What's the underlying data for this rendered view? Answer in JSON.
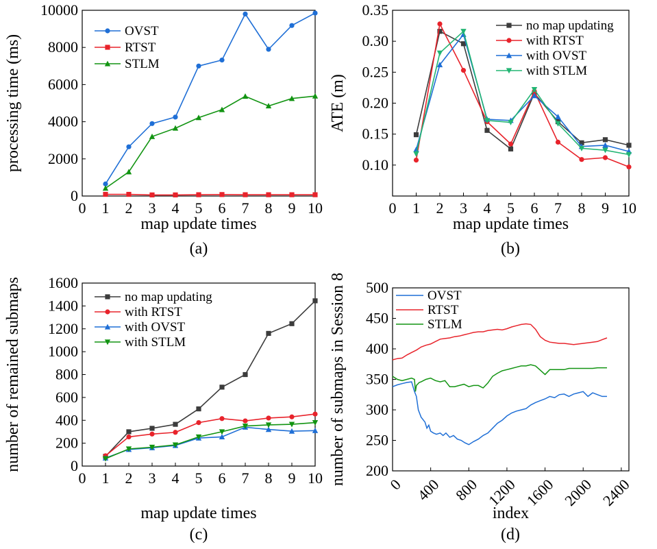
{
  "colors": {
    "blue": "#1f6fd6",
    "red": "#e8232b",
    "green": "#129412",
    "gray": "#3c3c3c"
  },
  "chart_data": [
    {
      "id": "a",
      "type": "line",
      "caption": "(a)",
      "xlabel": "map update times",
      "ylabel": "processing time (ms)",
      "xlim": [
        0,
        10
      ],
      "ylim": [
        0,
        10000
      ],
      "xticks": [
        0,
        1,
        2,
        3,
        4,
        5,
        6,
        7,
        8,
        9,
        10
      ],
      "yticks": [
        0,
        2000,
        4000,
        6000,
        8000,
        10000
      ],
      "legend": "top-left",
      "x": [
        1,
        2,
        3,
        4,
        5,
        6,
        7,
        8,
        9,
        10
      ],
      "series": [
        {
          "name": "OVST",
          "color": "#1f6fd6",
          "marker": "circle",
          "values": [
            650,
            2650,
            3900,
            4250,
            7000,
            7320,
            9800,
            7900,
            9180,
            9850
          ]
        },
        {
          "name": "RTST",
          "color": "#e8232b",
          "marker": "square",
          "values": [
            90,
            90,
            60,
            60,
            70,
            80,
            70,
            70,
            70,
            70
          ]
        },
        {
          "name": "STLM",
          "color": "#129412",
          "marker": "triangle-up",
          "values": [
            420,
            1300,
            3200,
            3650,
            4220,
            4650,
            5370,
            4850,
            5250,
            5380
          ]
        }
      ]
    },
    {
      "id": "b",
      "type": "line",
      "caption": "(b)",
      "xlabel": "map update times",
      "ylabel": "ATE (m)",
      "xlim": [
        0,
        10
      ],
      "ylim": [
        0.05,
        0.35
      ],
      "xticks": [
        0,
        1,
        2,
        3,
        4,
        5,
        6,
        7,
        8,
        9,
        10
      ],
      "yticks": [
        0.1,
        0.15,
        0.2,
        0.25,
        0.3,
        0.35
      ],
      "ytick_labels": [
        "0.10",
        "0.15",
        "0.20",
        "0.25",
        "0.30",
        "0.35"
      ],
      "legend": "top-right",
      "x": [
        1,
        2,
        3,
        4,
        5,
        6,
        7,
        8,
        9,
        10
      ],
      "series": [
        {
          "name": "no map updating",
          "color": "#3c3c3c",
          "marker": "square",
          "values": [
            0.149,
            0.316,
            0.296,
            0.156,
            0.126,
            0.216,
            0.17,
            0.136,
            0.141,
            0.132
          ]
        },
        {
          "name": "with RTST",
          "color": "#e8232b",
          "marker": "circle",
          "values": [
            0.108,
            0.328,
            0.253,
            0.17,
            0.134,
            0.219,
            0.137,
            0.109,
            0.112,
            0.097
          ]
        },
        {
          "name": "with OVST",
          "color": "#1f6fd6",
          "marker": "triangle-up",
          "values": [
            0.125,
            0.262,
            0.311,
            0.174,
            0.172,
            0.212,
            0.178,
            0.13,
            0.132,
            0.122
          ]
        },
        {
          "name": "with STLM",
          "color": "#22b573",
          "marker": "triangle-down",
          "values": [
            0.118,
            0.281,
            0.316,
            0.172,
            0.169,
            0.222,
            0.167,
            0.127,
            0.124,
            0.117
          ]
        }
      ]
    },
    {
      "id": "c",
      "type": "line",
      "caption": "(c)",
      "xlabel": "map update times",
      "ylabel": "number of remained submaps",
      "xlim": [
        0,
        10
      ],
      "ylim": [
        0,
        1600
      ],
      "xticks": [
        0,
        1,
        2,
        3,
        4,
        5,
        6,
        7,
        8,
        9,
        10
      ],
      "yticks": [
        0,
        200,
        400,
        600,
        800,
        1000,
        1200,
        1400,
        1600
      ],
      "legend": "top-left",
      "x": [
        1,
        2,
        3,
        4,
        5,
        6,
        7,
        8,
        9,
        10
      ],
      "series": [
        {
          "name": "no map updating",
          "color": "#3c3c3c",
          "marker": "square",
          "values": [
            85,
            300,
            330,
            365,
            500,
            690,
            800,
            1160,
            1245,
            1445
          ]
        },
        {
          "name": "with RTST",
          "color": "#e8232b",
          "marker": "circle",
          "values": [
            90,
            255,
            280,
            295,
            380,
            415,
            395,
            420,
            430,
            455
          ]
        },
        {
          "name": "with OVST",
          "color": "#1f6fd6",
          "marker": "triangle-up",
          "values": [
            70,
            145,
            160,
            180,
            245,
            255,
            340,
            320,
            305,
            310
          ]
        },
        {
          "name": "with STLM",
          "color": "#129412",
          "marker": "triangle-down",
          "values": [
            65,
            150,
            165,
            185,
            255,
            300,
            350,
            360,
            365,
            380
          ]
        }
      ]
    },
    {
      "id": "d",
      "type": "line",
      "caption": "(d)",
      "xlabel": "index",
      "ylabel": "number of submaps in Session 8",
      "xlim": [
        0,
        2480
      ],
      "ylim": [
        200,
        500
      ],
      "xticks": [
        0,
        400,
        800,
        1200,
        1600,
        2000,
        2400
      ],
      "yticks": [
        200,
        250,
        300,
        350,
        400,
        450,
        500
      ],
      "legend": "top-left",
      "series": [
        {
          "name": "OVST",
          "color": "#1f6fd6",
          "x": [
            0,
            50,
            100,
            150,
            200,
            230,
            250,
            270,
            300,
            340,
            360,
            380,
            400,
            430,
            460,
            500,
            530,
            560,
            600,
            640,
            680,
            720,
            760,
            800,
            850,
            900,
            950,
            1000,
            1050,
            1100,
            1150,
            1200,
            1250,
            1300,
            1350,
            1400,
            1450,
            1500,
            1550,
            1600,
            1650,
            1700,
            1750,
            1800,
            1850,
            1900,
            1950,
            2000,
            2050,
            2100,
            2150,
            2200,
            2250
          ],
          "values": [
            338,
            341,
            343,
            345,
            346,
            330,
            322,
            300,
            288,
            280,
            270,
            275,
            265,
            262,
            260,
            262,
            258,
            262,
            255,
            258,
            252,
            250,
            246,
            243,
            248,
            252,
            258,
            262,
            270,
            278,
            283,
            290,
            295,
            298,
            300,
            302,
            308,
            312,
            315,
            318,
            322,
            320,
            325,
            326,
            322,
            326,
            328,
            330,
            322,
            328,
            325,
            322,
            322
          ]
        },
        {
          "name": "RTST",
          "color": "#e8232b",
          "x": [
            0,
            50,
            100,
            150,
            200,
            250,
            300,
            350,
            400,
            450,
            500,
            550,
            600,
            650,
            700,
            750,
            800,
            850,
            900,
            950,
            1000,
            1050,
            1100,
            1150,
            1200,
            1250,
            1300,
            1350,
            1400,
            1450,
            1500,
            1550,
            1600,
            1650,
            1700,
            1750,
            1800,
            1850,
            1900,
            1950,
            2000,
            2050,
            2100,
            2150,
            2200,
            2250
          ],
          "values": [
            382,
            384,
            385,
            390,
            394,
            398,
            403,
            406,
            408,
            412,
            416,
            417,
            418,
            420,
            421,
            423,
            425,
            427,
            428,
            428,
            430,
            431,
            432,
            431,
            433,
            436,
            438,
            440,
            441,
            440,
            432,
            420,
            414,
            411,
            410,
            409,
            409,
            408,
            407,
            408,
            409,
            410,
            411,
            412,
            415,
            418
          ]
        },
        {
          "name": "STLM",
          "color": "#129412",
          "x": [
            0,
            50,
            100,
            150,
            200,
            230,
            240,
            250,
            280,
            300,
            350,
            400,
            450,
            500,
            550,
            600,
            650,
            700,
            750,
            800,
            850,
            900,
            950,
            1000,
            1050,
            1100,
            1150,
            1200,
            1250,
            1300,
            1350,
            1400,
            1450,
            1500,
            1550,
            1600,
            1650,
            1700,
            1750,
            1800,
            1850,
            1900,
            1950,
            2000,
            2050,
            2100,
            2150,
            2200,
            2250
          ],
          "values": [
            355,
            350,
            348,
            350,
            352,
            350,
            330,
            340,
            345,
            346,
            350,
            352,
            348,
            346,
            348,
            338,
            338,
            340,
            342,
            338,
            340,
            340,
            336,
            344,
            355,
            360,
            364,
            366,
            368,
            370,
            372,
            372,
            374,
            372,
            365,
            358,
            366,
            366,
            366,
            366,
            368,
            368,
            368,
            368,
            368,
            368,
            369,
            369,
            369
          ]
        }
      ]
    }
  ]
}
